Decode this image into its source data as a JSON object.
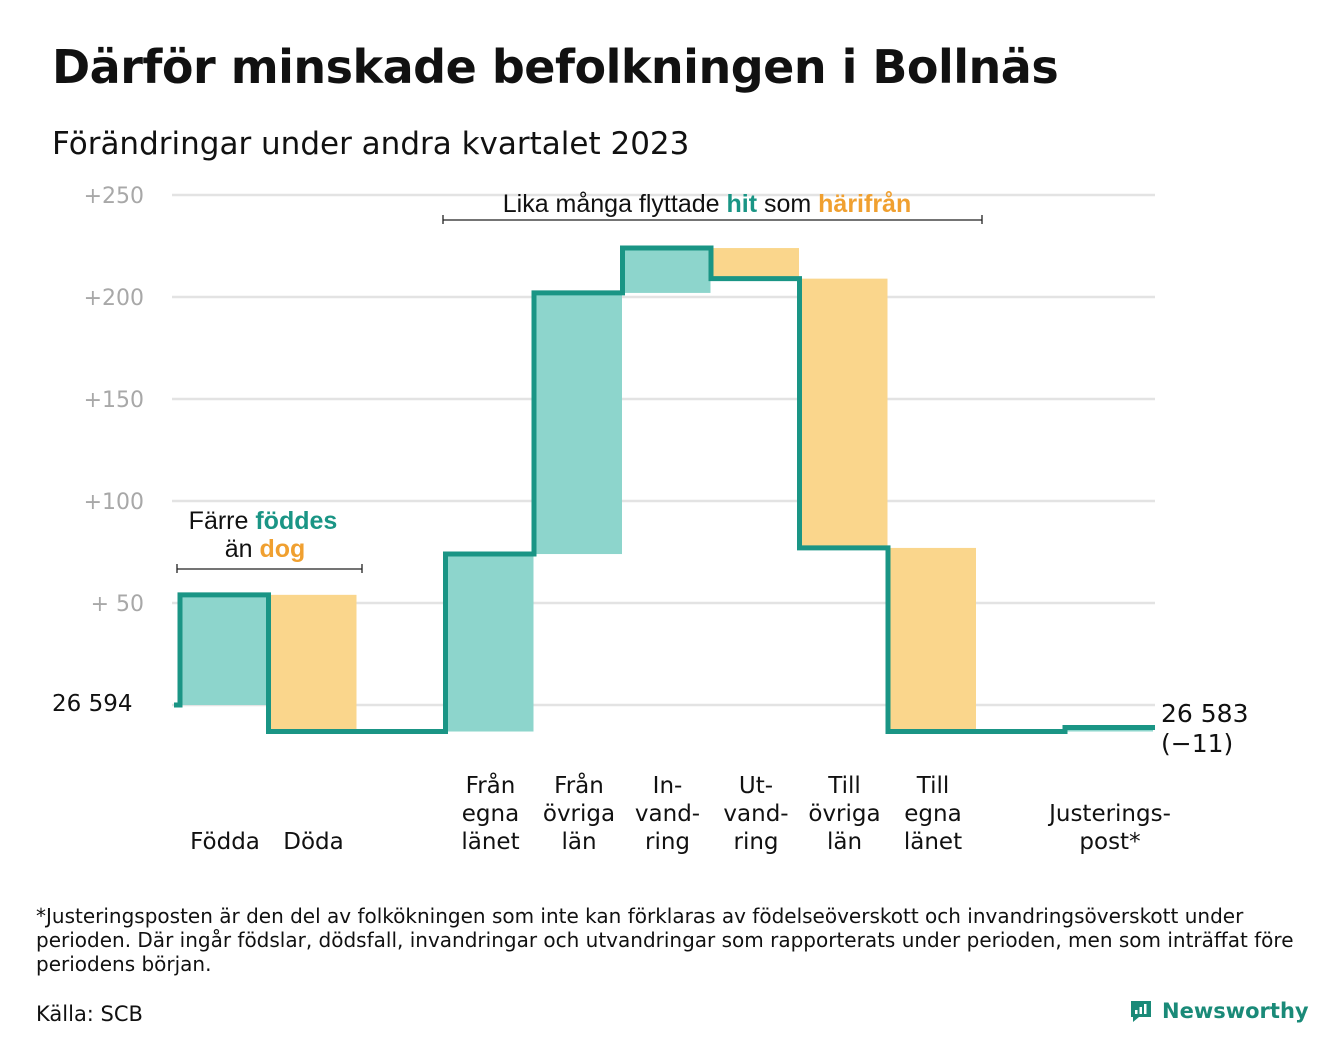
{
  "title": "Därför minskade befolkningen i Bollnäs",
  "subtitle": "Förändringar under andra kvartalet 2023",
  "footnote": "*Justeringsposten är den del av folkökningen som inte kan förklaras av födelseöverskott och invandringsöverskott under perioden. Där ingår födslar, dödsfall, invandringar och utvandringar som rapporterats under perioden, men som inträffat före periodens början.",
  "source": "Källa: SCB",
  "brand": "Newsworthy",
  "colors": {
    "increase_fill": "#8dd5cc",
    "decrease_fill": "#fad68c",
    "line": "#1a9585",
    "teal_text": "#1a9585",
    "orange_text": "#f0a030",
    "grid": "#e3e3e3",
    "tick_text": "#a8a8a8"
  },
  "annotations": {
    "births": {
      "line1_pre": "Färre ",
      "line1_teal": "föddes",
      "line2_pre": "än ",
      "line2_orange": "dog"
    },
    "migration": {
      "pre": "Lika många flyttade ",
      "teal": "hit",
      "mid": " som ",
      "orange": "härifrån"
    }
  },
  "chart_data": {
    "type": "waterfall",
    "title": "Därför minskade befolkningen i Bollnäs",
    "subtitle": "Förändringar under andra kvartalet 2023",
    "start_label": "26  594",
    "start_value": 26594,
    "end_label": "26 583",
    "end_change_label": "(−11)",
    "end_value": 26583,
    "y_ticks": [
      {
        "value": 250,
        "label": "+250"
      },
      {
        "value": 200,
        "label": "+200"
      },
      {
        "value": 150,
        "label": "+150"
      },
      {
        "value": 100,
        "label": "+100"
      },
      {
        "value": 50,
        "label": "+  50"
      }
    ],
    "ylim": [
      -20,
      255
    ],
    "steps": [
      {
        "key": "fodda",
        "label": [
          "Födda"
        ],
        "change": 54,
        "from": 0,
        "to": 54,
        "slot": 0
      },
      {
        "key": "doda",
        "label": [
          "Döda"
        ],
        "change": -67,
        "from": 54,
        "to": -13,
        "slot": 1
      },
      {
        "key": "fran_egna",
        "label": [
          "Från",
          "egna",
          "länet"
        ],
        "change": 87,
        "from": -13,
        "to": 74,
        "slot": 3
      },
      {
        "key": "fran_ovriga",
        "label": [
          "Från",
          "övriga",
          "län"
        ],
        "change": 128,
        "from": 74,
        "to": 202,
        "slot": 4
      },
      {
        "key": "invandring",
        "label": [
          "In-",
          "vand-",
          "ring"
        ],
        "change": 22,
        "from": 202,
        "to": 224,
        "slot": 5
      },
      {
        "key": "utvandring",
        "label": [
          "Ut-",
          "vand-",
          "ring"
        ],
        "change": -15,
        "from": 224,
        "to": 209,
        "slot": 6
      },
      {
        "key": "till_ovriga",
        "label": [
          "Till",
          "övriga",
          "län"
        ],
        "change": -132,
        "from": 209,
        "to": 77,
        "slot": 7
      },
      {
        "key": "till_egna",
        "label": [
          "Till",
          "egna",
          "länet"
        ],
        "change": -90,
        "from": 77,
        "to": -13,
        "slot": 8
      },
      {
        "key": "justering",
        "label": [
          "Justerings-",
          "post*"
        ],
        "change": 2,
        "from": -13,
        "to": -11,
        "slot": 10
      }
    ]
  }
}
